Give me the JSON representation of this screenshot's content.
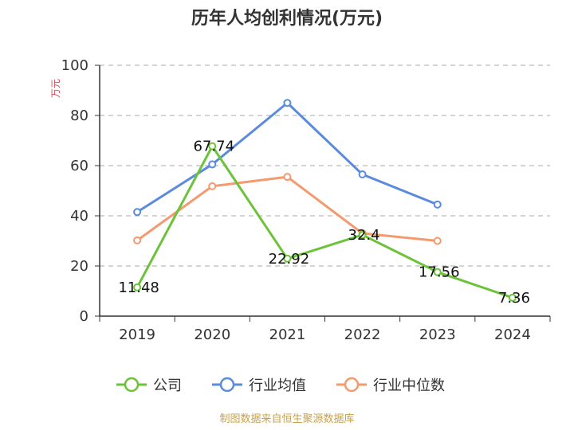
{
  "chart_data": {
    "type": "line",
    "title": "历年人均创利情况(万元)",
    "ylabel": "万元",
    "categories": [
      "2019",
      "2020",
      "2021",
      "2022",
      "2023",
      "2024"
    ],
    "ylim": [
      0,
      100
    ],
    "yticks": [
      0,
      20,
      40,
      60,
      80,
      100
    ],
    "grid": true,
    "legend_position": "bottom",
    "series": [
      {
        "name": "公司",
        "color": "#6cc33a",
        "values": [
          11.48,
          67.74,
          22.92,
          32.4,
          17.56,
          7.36
        ],
        "labels": [
          "11.48",
          "67.74",
          "22.92",
          "32.4",
          "17.56",
          "7.36"
        ]
      },
      {
        "name": "行业均值",
        "color": "#5b8bdc",
        "values": [
          41.5,
          60.5,
          85,
          56.5,
          44.5,
          null
        ]
      },
      {
        "name": "行业中位数",
        "color": "#f39a6e",
        "values": [
          30.2,
          51.8,
          55.5,
          33,
          30,
          null
        ]
      }
    ]
  },
  "footer": {
    "source": "制图数据来自恒生聚源数据库"
  }
}
